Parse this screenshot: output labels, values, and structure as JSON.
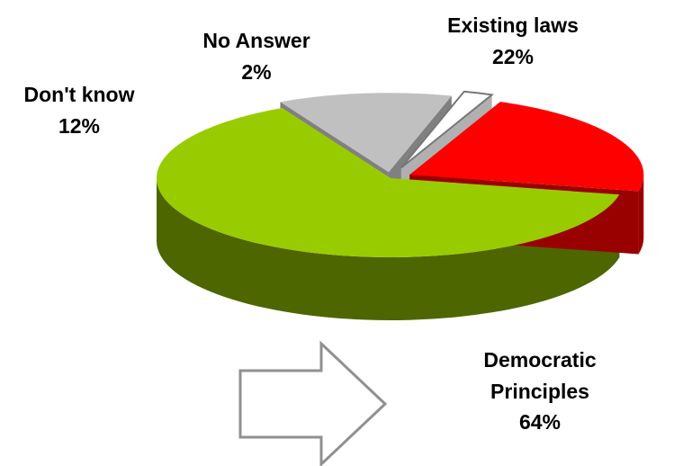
{
  "chart_data": {
    "type": "pie",
    "style": "3d-exploded",
    "title": "",
    "slices": [
      {
        "label": "Democratic Principles",
        "label_lines": [
          "Democratic",
          "Principles"
        ],
        "value": 64,
        "value_text": "64%",
        "color": "#99CC00",
        "side_color": "#4D6600"
      },
      {
        "label": "Don't know",
        "label_lines": [
          "Don't know"
        ],
        "value": 12,
        "value_text": "12%",
        "color": "#C0C0C0",
        "side_color": "#808080"
      },
      {
        "label": "No Answer",
        "label_lines": [
          "No Answer"
        ],
        "value": 2,
        "value_text": "2%",
        "color": "#FFFFFF",
        "side_color": "#B0B0B0"
      },
      {
        "label": "Existing laws",
        "label_lines": [
          "Existing laws"
        ],
        "value": 22,
        "value_text": "22%",
        "color": "#FF0000",
        "side_color": "#990000"
      }
    ],
    "annotations": [
      {
        "type": "arrow",
        "direction": "right",
        "style": "outline"
      }
    ]
  }
}
